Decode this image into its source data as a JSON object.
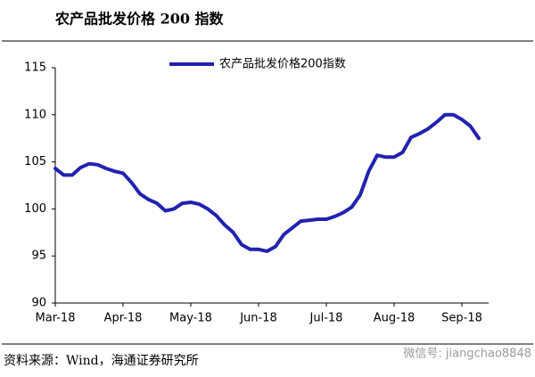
{
  "header": {
    "title": "农产品批发价格 200 指数"
  },
  "chart_data": {
    "type": "line",
    "categories": [
      "Mar-18",
      null,
      null,
      null,
      null,
      null,
      null,
      null,
      "Apr-18",
      null,
      null,
      null,
      null,
      null,
      null,
      null,
      "May-18",
      null,
      null,
      null,
      null,
      null,
      null,
      null,
      "Jun-18",
      null,
      null,
      null,
      null,
      null,
      null,
      null,
      "Jul-18",
      null,
      null,
      null,
      null,
      null,
      null,
      null,
      "Aug-18",
      null,
      null,
      null,
      null,
      null,
      null,
      null,
      "Sep-18",
      null,
      null
    ],
    "series": [
      {
        "name": "农产品批发价格200指数",
        "color": "#2222b0",
        "values": [
          104.3,
          103.6,
          103.6,
          104.4,
          104.8,
          104.7,
          104.3,
          104.0,
          103.8,
          102.8,
          101.6,
          101.0,
          100.6,
          99.8,
          100.0,
          100.6,
          100.7,
          100.5,
          100.0,
          99.3,
          98.3,
          97.5,
          96.2,
          95.7,
          95.7,
          95.5,
          96.0,
          97.3,
          98.0,
          98.7,
          98.8,
          98.9,
          98.9,
          99.2,
          99.6,
          100.2,
          101.5,
          104.0,
          105.7,
          105.5,
          105.5,
          106.0,
          107.6,
          108.0,
          108.5,
          109.2,
          110.0,
          110.0,
          109.5,
          108.8,
          107.5
        ]
      }
    ],
    "ylim": [
      90,
      115
    ],
    "yticks": [
      90,
      95,
      100,
      105,
      110,
      115
    ],
    "grid": false,
    "legend": "top"
  },
  "footer": {
    "source": "资料来源：Wind，海通证券研究所",
    "watermark": "微信号: jiangchao8848"
  }
}
